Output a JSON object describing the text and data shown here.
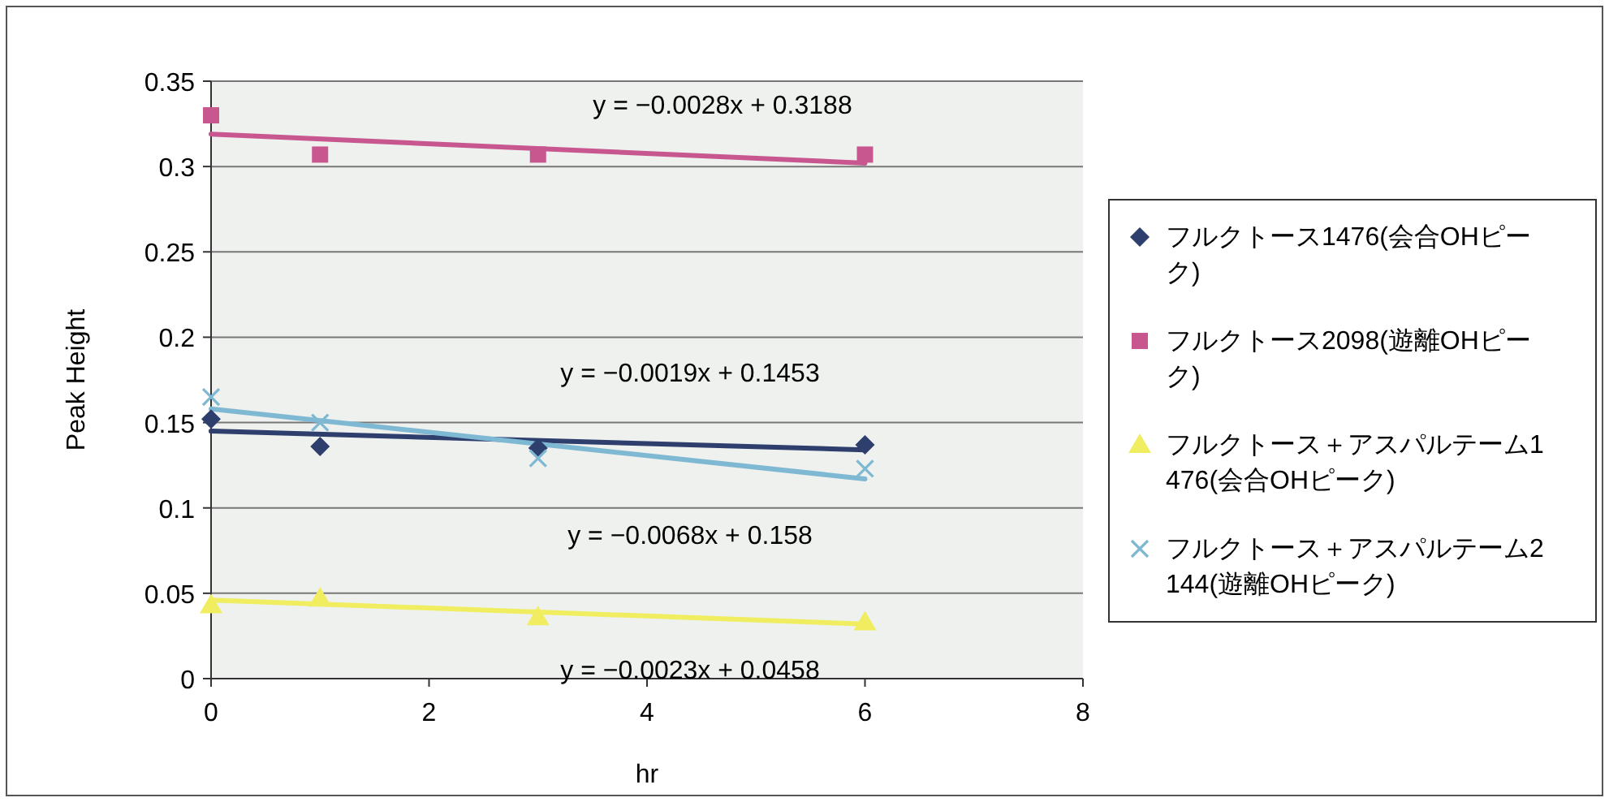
{
  "chart_data": {
    "type": "scatter",
    "xlabel": "hr",
    "ylabel": "Peak Height",
    "xlim": [
      0,
      8
    ],
    "xticks": [
      0,
      2,
      4,
      6,
      8
    ],
    "ylim": [
      0,
      0.35
    ],
    "yticks": [
      0,
      0.05,
      0.1,
      0.15,
      0.2,
      0.25,
      0.3,
      0.35
    ],
    "grid": "y",
    "legend": "right",
    "series": [
      {
        "name": "フルクトース1476(会合OHピーク)",
        "color": "#2e3f6e",
        "marker": "diamond",
        "x": [
          0,
          1,
          3,
          6
        ],
        "values": [
          0.152,
          0.136,
          0.135,
          0.137
        ]
      },
      {
        "name": "フルクトース2098(遊離OHピーク)",
        "color": "#c8578f",
        "marker": "square",
        "x": [
          0,
          1,
          3,
          6
        ],
        "values": [
          0.33,
          0.307,
          0.307,
          0.307
        ]
      },
      {
        "name": "フルクトース＋アスパルテーム1476(会合OHピーク)",
        "color": "#f0ee60",
        "marker": "triangle",
        "x": [
          0,
          1,
          3,
          6
        ],
        "values": [
          0.043,
          0.047,
          0.036,
          0.033
        ]
      },
      {
        "name": "フルクトース＋アスパルテーム2144(遊離OHピーク)",
        "color": "#7fb8d3",
        "marker": "cross",
        "x": [
          0,
          1,
          3,
          6
        ],
        "values": [
          0.165,
          0.15,
          0.129,
          0.123
        ]
      },
      {
        "type": "line",
        "color": "#2e3f6e",
        "marker": "none",
        "x": [
          0,
          6
        ],
        "values": [
          0.145,
          0.134
        ]
      },
      {
        "type": "line",
        "color": "#c8578f",
        "marker": "none",
        "x": [
          0,
          6
        ],
        "values": [
          0.319,
          0.302
        ]
      },
      {
        "type": "line",
        "color": "#f0ee60",
        "marker": "none",
        "x": [
          0,
          6
        ],
        "values": [
          0.046,
          0.032
        ]
      },
      {
        "type": "line",
        "color": "#7fb8d3",
        "marker": "none",
        "x": [
          0,
          6
        ],
        "values": [
          0.158,
          0.117
        ]
      }
    ],
    "annotations": [
      "y = −0.0028x + 0.3188",
      "y = −0.0019x + 0.1453",
      "y = −0.0068x + 0.158",
      "y = −0.0023x + 0.0458"
    ]
  }
}
